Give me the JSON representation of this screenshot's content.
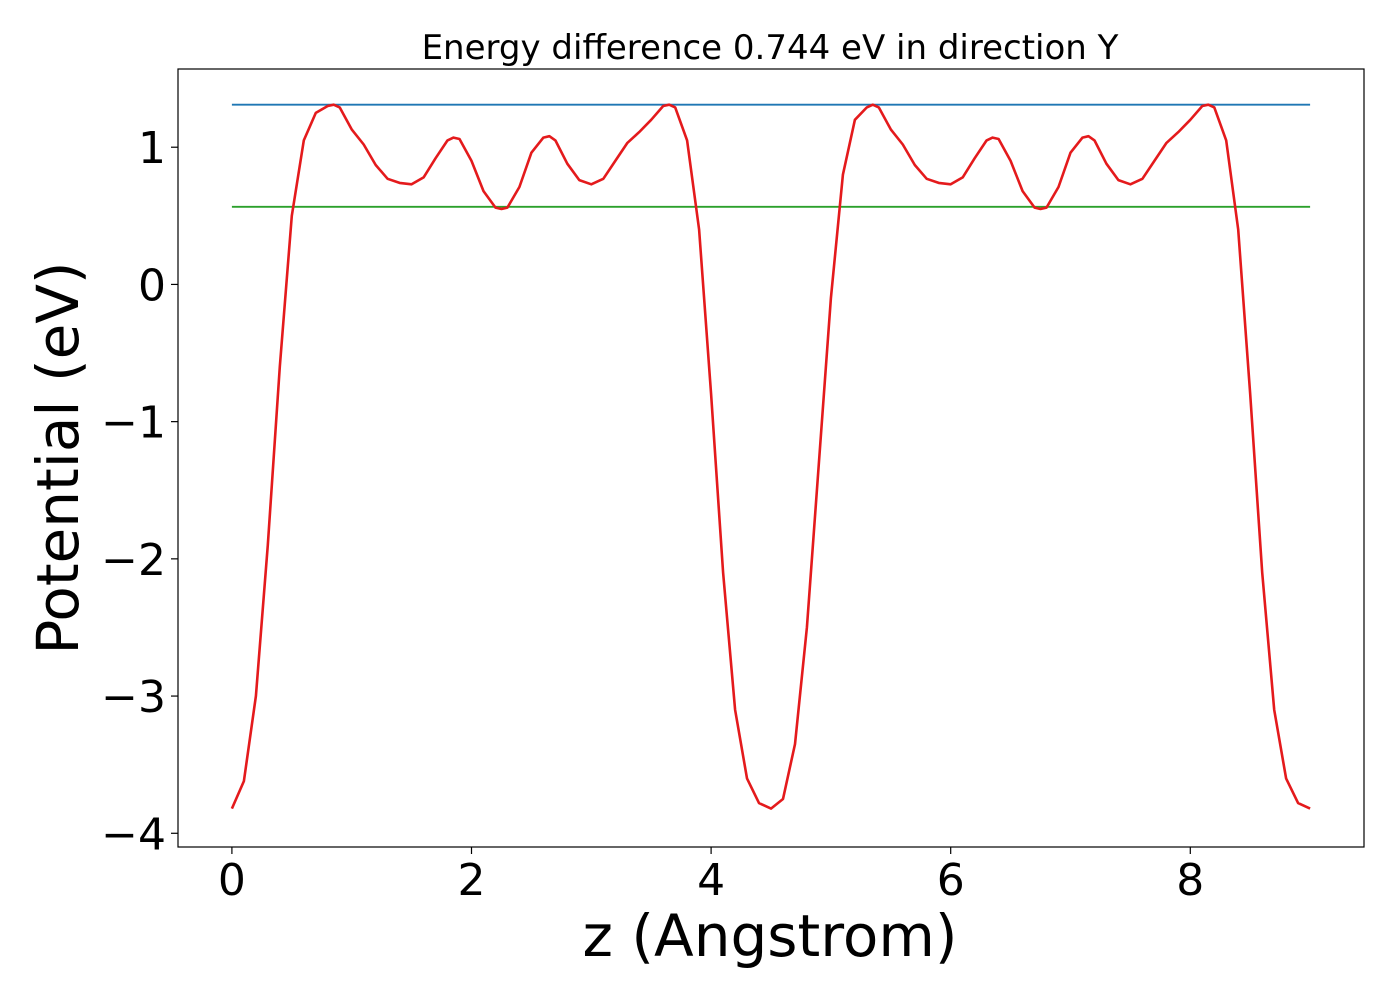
{
  "chart_data": {
    "type": "line",
    "title": "Energy difference 0.744 eV in direction Y",
    "xlabel": "z (Angstrom)",
    "ylabel": "Potential (eV)",
    "xlim": [
      -0.45,
      9.45
    ],
    "ylim": [
      -4.1,
      1.57
    ],
    "x_ticks": [
      {
        "value": 0,
        "label": "0"
      },
      {
        "value": 2,
        "label": "2"
      },
      {
        "value": 4,
        "label": "4"
      },
      {
        "value": 6,
        "label": "6"
      },
      {
        "value": 8,
        "label": "8"
      }
    ],
    "y_ticks": [
      {
        "value": -4,
        "label": "−4"
      },
      {
        "value": -3,
        "label": "−3"
      },
      {
        "value": -2,
        "label": "−2"
      },
      {
        "value": -1,
        "label": "−1"
      },
      {
        "value": 0,
        "label": "0"
      },
      {
        "value": 1,
        "label": "1"
      }
    ],
    "grid": false,
    "legend": false,
    "series": [
      {
        "color": "#1f77b4",
        "style": "hline",
        "x": [
          0,
          9.0
        ],
        "y": [
          1.31,
          1.31
        ]
      },
      {
        "color": "#2ca02c",
        "style": "hline",
        "x": [
          0,
          9.0
        ],
        "y": [
          0.566,
          0.566
        ]
      },
      {
        "color": "#e41a1c",
        "style": "line",
        "x": [
          0.0,
          0.1,
          0.2,
          0.3,
          0.4,
          0.5,
          0.6,
          0.7,
          0.8,
          0.85,
          0.9,
          1.0,
          1.1,
          1.2,
          1.3,
          1.4,
          1.5,
          1.6,
          1.7,
          1.8,
          1.85,
          1.9,
          2.0,
          2.1,
          2.2,
          2.25,
          2.3,
          2.4,
          2.5,
          2.6,
          2.65,
          2.7,
          2.8,
          2.9,
          3.0,
          3.1,
          3.2,
          3.3,
          3.4,
          3.5,
          3.6,
          3.65,
          3.7,
          3.8,
          3.9,
          4.0,
          4.1,
          4.2,
          4.3,
          4.4,
          4.5,
          4.6,
          4.7,
          4.8,
          4.9,
          5.0,
          5.1,
          5.2,
          5.3,
          5.35,
          5.4,
          5.5,
          5.6,
          5.7,
          5.8,
          5.9,
          6.0,
          6.1,
          6.2,
          6.3,
          6.35,
          6.4,
          6.5,
          6.6,
          6.7,
          6.75,
          6.8,
          6.9,
          7.0,
          7.1,
          7.15,
          7.2,
          7.3,
          7.4,
          7.5,
          7.6,
          7.7,
          7.8,
          7.9,
          8.0,
          8.1,
          8.15,
          8.2,
          8.3,
          8.4,
          8.5,
          8.6,
          8.7,
          8.8,
          8.9,
          9.0
        ],
        "y": [
          -3.82,
          -3.62,
          -3.0,
          -1.9,
          -0.6,
          0.5,
          1.05,
          1.25,
          1.3,
          1.31,
          1.29,
          1.13,
          1.02,
          0.87,
          0.77,
          0.74,
          0.73,
          0.78,
          0.92,
          1.05,
          1.07,
          1.06,
          0.9,
          0.68,
          0.56,
          0.55,
          0.56,
          0.71,
          0.96,
          1.07,
          1.08,
          1.05,
          0.88,
          0.76,
          0.73,
          0.77,
          0.9,
          1.03,
          1.11,
          1.2,
          1.3,
          1.31,
          1.29,
          1.05,
          0.4,
          -0.8,
          -2.1,
          -3.1,
          -3.6,
          -3.78,
          -3.82,
          -3.75,
          -3.35,
          -2.5,
          -1.3,
          -0.1,
          0.8,
          1.2,
          1.29,
          1.31,
          1.29,
          1.13,
          1.02,
          0.87,
          0.77,
          0.74,
          0.73,
          0.78,
          0.92,
          1.05,
          1.07,
          1.06,
          0.9,
          0.68,
          0.56,
          0.55,
          0.56,
          0.71,
          0.96,
          1.07,
          1.08,
          1.05,
          0.88,
          0.76,
          0.73,
          0.77,
          0.9,
          1.03,
          1.11,
          1.2,
          1.3,
          1.31,
          1.29,
          1.05,
          0.4,
          -0.8,
          -2.1,
          -3.1,
          -3.6,
          -3.78,
          -3.82
        ]
      }
    ]
  }
}
